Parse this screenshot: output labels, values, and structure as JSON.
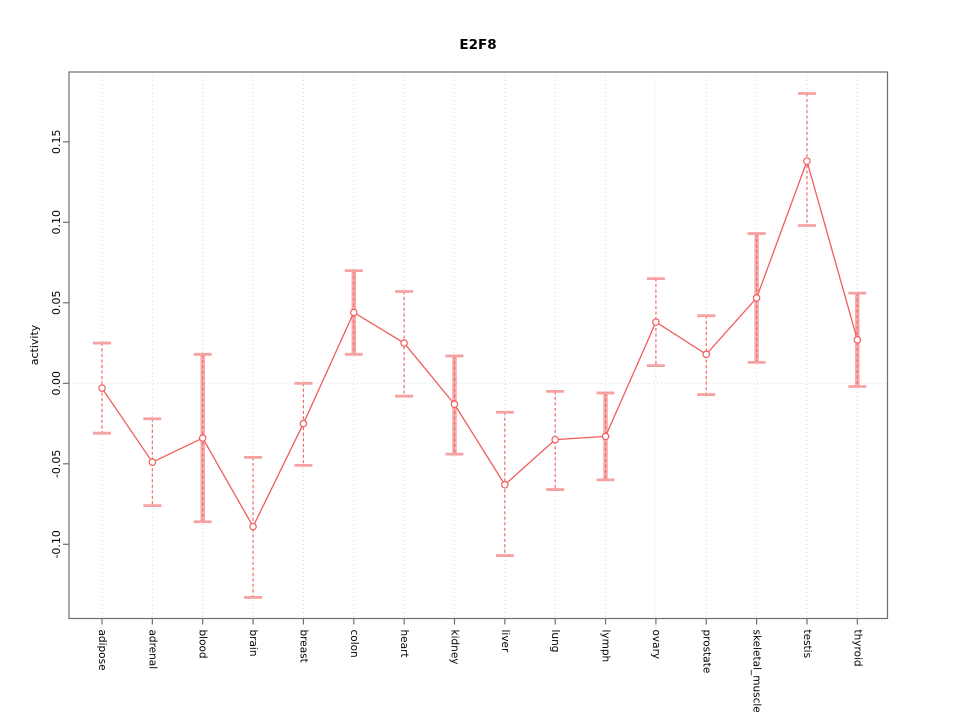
{
  "title": "E2F8",
  "colors": {
    "series": "#f25c5c",
    "errorbar_band": "#f7a8a8",
    "errorbar_cap": "#f5a2a2",
    "errorbar_dash": "#f26a6a",
    "grid": "#d9d9d9",
    "frame": "#6e6e6e",
    "text": "#000000",
    "background": "#ffffff",
    "point_fill": "#ffffff"
  },
  "chart_data": {
    "type": "line",
    "title": "E2F8",
    "xlabel": "",
    "ylabel": "activity",
    "legend": "none",
    "grid": "vertical dotted line per category; horizontal dotted line at y=0",
    "point_style": "open-circle",
    "ylim": [
      -0.146,
      0.193
    ],
    "yticks": [
      -0.1,
      -0.05,
      0.0,
      0.05,
      0.1,
      0.15
    ],
    "ytick_labels": [
      "-0.10",
      "-0.05",
      "0.00",
      "0.05",
      "0.10",
      "0.15"
    ],
    "categories": [
      "adipose",
      "adrenal",
      "blood",
      "brain",
      "breast",
      "colon",
      "heart",
      "kidney",
      "liver",
      "lung",
      "lymph",
      "ovary",
      "prostate",
      "skeletal_muscle",
      "testis",
      "thyroid"
    ],
    "series": [
      {
        "name": "activity",
        "values": [
          -0.003,
          -0.049,
          -0.034,
          -0.089,
          -0.025,
          0.044,
          0.025,
          -0.013,
          -0.063,
          -0.035,
          -0.033,
          0.038,
          0.018,
          0.053,
          0.138,
          0.027
        ],
        "err_high": [
          0.025,
          -0.022,
          0.018,
          -0.046,
          0.0,
          0.07,
          0.057,
          0.017,
          -0.018,
          -0.005,
          -0.006,
          0.065,
          0.042,
          0.093,
          0.18,
          0.056
        ],
        "err_low": [
          -0.031,
          -0.076,
          -0.086,
          -0.133,
          -0.051,
          0.018,
          -0.008,
          -0.044,
          -0.107,
          -0.066,
          -0.06,
          0.011,
          -0.007,
          0.013,
          0.098,
          -0.002
        ],
        "errorbar_style": [
          "dashed",
          "dashed",
          "band",
          "dashed",
          "dashed",
          "band",
          "dashed",
          "band",
          "dashed",
          "dashed",
          "band",
          "dashed",
          "dashed",
          "band",
          "dashed",
          "band"
        ]
      }
    ]
  }
}
